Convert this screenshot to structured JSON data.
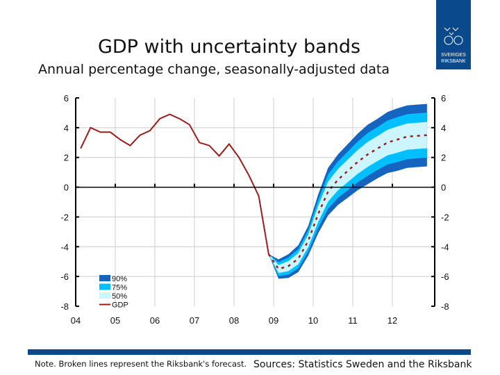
{
  "title": "GDP with uncertainty bands",
  "subtitle": "Annual percentage change, seasonally-adjusted data",
  "logo_text": "SVERIGES RIKSBANK",
  "footer": {
    "note": "Note. Broken lines represent the Riksbank's forecast.",
    "sources": "Sources: Statistics Sweden and the Riksbank"
  },
  "colors": {
    "gdp": "#9b1c1c",
    "band90": "#1565c0",
    "band75": "#00bfff",
    "band50": "#ccf6ff",
    "brand": "#0a4a8c"
  },
  "chart_data": {
    "type": "area",
    "ylim": [
      -8,
      6
    ],
    "yticks": [
      -8,
      -6,
      -4,
      -2,
      0,
      2,
      4,
      6
    ],
    "xticks": [
      "04",
      "05",
      "06",
      "07",
      "08",
      "09",
      "10",
      "11",
      "12"
    ],
    "grid": true,
    "legend_placement": "bottom-left",
    "legend": [
      "90%",
      "75%",
      "50%",
      "GDP"
    ],
    "gdp": {
      "name": "GDP",
      "start": "2004Q1",
      "values": [
        2.6,
        4.0,
        3.7,
        3.7,
        3.2,
        2.8,
        3.5,
        3.8,
        4.6,
        4.9,
        4.6,
        4.2,
        3.0,
        2.8,
        2.1,
        2.9,
        2.0,
        0.8,
        -0.6,
        -4.5
      ]
    },
    "forecast": {
      "start": "2008Q4",
      "median": [
        -4.5,
        -5.5,
        -5.3,
        -4.8,
        -3.6,
        -1.8,
        -0.3,
        0.5,
        1.1,
        1.7,
        2.2,
        2.6,
        3.0,
        3.2,
        3.4,
        3.45,
        3.5
      ],
      "band90_halfwidth": [
        0,
        0.65,
        0.8,
        0.9,
        1.0,
        1.3,
        1.6,
        1.7,
        1.8,
        1.9,
        2.0,
        2.0,
        2.05,
        2.1,
        2.1,
        2.1,
        2.1
      ],
      "band75_ratio": 0.72,
      "band50_ratio": 0.42
    }
  }
}
